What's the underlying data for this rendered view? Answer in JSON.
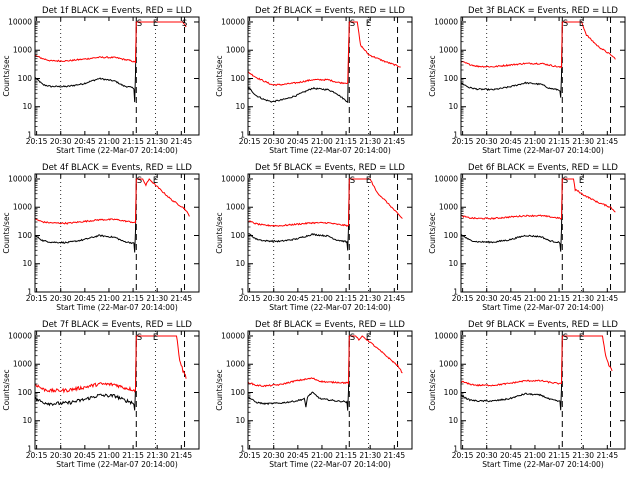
{
  "figure": {
    "xlabel": "Start Time (22-Mar-07 20:14:00)",
    "ylabel": "Counts/sec",
    "x_ticks": [
      "20:15",
      "20:30",
      "20:45",
      "21:00",
      "21:15",
      "21:30",
      "21:45"
    ],
    "y_ticks": [
      "1",
      "10",
      "100",
      "1000",
      "10000"
    ],
    "colors": {
      "events": "#000000",
      "lld": "#ff0000"
    }
  },
  "chart_data": [
    {
      "type": "line",
      "title": "Det 1f BLACK = Events, RED = LLD",
      "xlim": [
        0,
        102
      ],
      "ylim": [
        1,
        15000
      ],
      "yscale": "log",
      "xticks_minutes": [
        1,
        16,
        31,
        46,
        61,
        76,
        91
      ],
      "markers": [
        {
          "x": 16,
          "style": "dotted"
        },
        {
          "x": 63,
          "style": "dashed"
        },
        {
          "x": 75,
          "style": "dotted"
        },
        {
          "x": 93,
          "style": "dashed"
        }
      ],
      "annotations": [
        {
          "text": "S",
          "x": 65
        },
        {
          "text": "E",
          "x": 75
        },
        {
          "text": "S",
          "x": 93
        }
      ],
      "series": [
        {
          "name": "Events",
          "x": [
            0,
            5,
            10,
            20,
            30,
            40,
            50,
            55,
            60,
            61.5,
            62,
            62.5,
            63
          ],
          "y": [
            110,
            60,
            52,
            52,
            65,
            100,
            80,
            55,
            48,
            45,
            15,
            150,
            10000
          ]
        },
        {
          "name": "LLD",
          "x": [
            0,
            5,
            10,
            20,
            30,
            40,
            50,
            55,
            60,
            62,
            62.5,
            63,
            90,
            92,
            93,
            94
          ],
          "y": [
            650,
            500,
            420,
            420,
            480,
            560,
            550,
            480,
            420,
            380,
            380,
            10000,
            10000,
            10000,
            8000,
            6500
          ]
        }
      ]
    },
    {
      "type": "line",
      "title": "Det 2f BLACK = Events, RED = LLD",
      "xlim": [
        0,
        102
      ],
      "ylim": [
        1,
        15000
      ],
      "yscale": "log",
      "xticks_minutes": [
        1,
        16,
        31,
        46,
        61,
        76,
        91
      ],
      "markers": [
        {
          "x": 16,
          "style": "dotted"
        },
        {
          "x": 63,
          "style": "dashed"
        },
        {
          "x": 75,
          "style": "dotted"
        },
        {
          "x": 93,
          "style": "dashed"
        }
      ],
      "annotations": [
        {
          "text": "S",
          "x": 65
        },
        {
          "text": "E",
          "x": 75
        }
      ],
      "series": [
        {
          "name": "Events",
          "x": [
            0,
            5,
            10,
            15,
            20,
            25,
            30,
            40,
            50,
            55,
            58,
            60,
            62,
            63
          ],
          "y": [
            50,
            25,
            18,
            15,
            17,
            20,
            25,
            45,
            40,
            30,
            22,
            18,
            15,
            10000
          ]
        },
        {
          "name": "LLD",
          "x": [
            0,
            5,
            10,
            15,
            20,
            30,
            40,
            50,
            55,
            58,
            60,
            62,
            63,
            66,
            68,
            70,
            75,
            85,
            93,
            95
          ],
          "y": [
            170,
            110,
            80,
            60,
            60,
            70,
            90,
            90,
            75,
            70,
            70,
            70,
            10000,
            10000,
            10000,
            1500,
            700,
            400,
            280,
            260
          ]
        }
      ]
    },
    {
      "type": "line",
      "title": "Det 3f BLACK = Events, RED = LLD",
      "xlim": [
        0,
        102
      ],
      "ylim": [
        1,
        15000
      ],
      "yscale": "log",
      "xticks_minutes": [
        1,
        16,
        31,
        46,
        61,
        76,
        91
      ],
      "markers": [
        {
          "x": 16,
          "style": "dotted"
        },
        {
          "x": 63,
          "style": "dashed"
        },
        {
          "x": 75,
          "style": "dotted"
        },
        {
          "x": 93,
          "style": "dashed"
        }
      ],
      "annotations": [
        {
          "text": "S",
          "x": 65
        },
        {
          "text": "E",
          "x": 75
        }
      ],
      "series": [
        {
          "name": "Events",
          "x": [
            0,
            5,
            10,
            20,
            30,
            40,
            50,
            55,
            60,
            61.5,
            62,
            62.5,
            63
          ],
          "y": [
            70,
            48,
            42,
            40,
            50,
            70,
            62,
            45,
            40,
            38,
            20,
            120,
            10000
          ]
        },
        {
          "name": "LLD",
          "x": [
            0,
            5,
            10,
            20,
            30,
            40,
            50,
            55,
            60,
            62,
            62.5,
            63,
            75,
            78,
            85,
            93,
            96
          ],
          "y": [
            400,
            320,
            270,
            260,
            300,
            340,
            340,
            300,
            260,
            250,
            250,
            10000,
            10000,
            3500,
            1400,
            700,
            500
          ]
        }
      ]
    },
    {
      "type": "line",
      "title": "Det 4f BLACK = Events, RED = LLD",
      "xlim": [
        0,
        102
      ],
      "ylim": [
        1,
        15000
      ],
      "yscale": "log",
      "xticks_minutes": [
        1,
        16,
        31,
        46,
        61,
        76,
        91
      ],
      "markers": [
        {
          "x": 16,
          "style": "dotted"
        },
        {
          "x": 63,
          "style": "dashed"
        },
        {
          "x": 75,
          "style": "dotted"
        },
        {
          "x": 93,
          "style": "dashed"
        }
      ],
      "annotations": [
        {
          "text": "S",
          "x": 65
        },
        {
          "text": "E",
          "x": 75
        }
      ],
      "series": [
        {
          "name": "Events",
          "x": [
            0,
            5,
            10,
            20,
            30,
            40,
            50,
            55,
            60,
            61.5,
            62,
            62.5,
            63
          ],
          "y": [
            100,
            65,
            58,
            56,
            70,
            100,
            85,
            62,
            55,
            52,
            25,
            150,
            10000
          ]
        },
        {
          "name": "LLD",
          "x": [
            0,
            5,
            10,
            20,
            30,
            40,
            50,
            55,
            60,
            62,
            62.5,
            63,
            67,
            69,
            71,
            75,
            85,
            93,
            96
          ],
          "y": [
            380,
            300,
            280,
            270,
            310,
            360,
            370,
            330,
            300,
            280,
            280,
            10000,
            10000,
            6000,
            10000,
            6000,
            1800,
            900,
            500
          ]
        }
      ]
    },
    {
      "type": "line",
      "title": "Det 5f BLACK = Events, RED = LLD",
      "xlim": [
        0,
        102
      ],
      "ylim": [
        1,
        15000
      ],
      "yscale": "log",
      "xticks_minutes": [
        1,
        16,
        31,
        46,
        61,
        76,
        91
      ],
      "markers": [
        {
          "x": 16,
          "style": "dotted"
        },
        {
          "x": 63,
          "style": "dashed"
        },
        {
          "x": 75,
          "style": "dotted"
        },
        {
          "x": 93,
          "style": "dashed"
        }
      ],
      "annotations": [
        {
          "text": "S",
          "x": 65
        },
        {
          "text": "E",
          "x": 75
        }
      ],
      "series": [
        {
          "name": "Events",
          "x": [
            0,
            5,
            10,
            20,
            30,
            40,
            50,
            55,
            60,
            61.5,
            62,
            62.5,
            63
          ],
          "y": [
            120,
            75,
            65,
            62,
            75,
            110,
            95,
            70,
            62,
            58,
            30,
            180,
            10000
          ]
        },
        {
          "name": "LLD",
          "x": [
            0,
            5,
            10,
            20,
            30,
            40,
            50,
            55,
            60,
            62,
            62.5,
            63,
            76,
            80,
            88,
            93,
            96
          ],
          "y": [
            330,
            260,
            230,
            220,
            250,
            280,
            280,
            250,
            230,
            220,
            220,
            10000,
            10000,
            3500,
            1200,
            600,
            400
          ]
        }
      ]
    },
    {
      "type": "line",
      "title": "Det 6f BLACK = Events, RED = LLD",
      "xlim": [
        0,
        102
      ],
      "ylim": [
        1,
        15000
      ],
      "yscale": "log",
      "xticks_minutes": [
        1,
        16,
        31,
        46,
        61,
        76,
        91
      ],
      "markers": [
        {
          "x": 16,
          "style": "dotted"
        },
        {
          "x": 63,
          "style": "dashed"
        },
        {
          "x": 75,
          "style": "dotted"
        },
        {
          "x": 93,
          "style": "dashed"
        }
      ],
      "annotations": [
        {
          "text": "S",
          "x": 65
        },
        {
          "text": "E",
          "x": 75
        }
      ],
      "series": [
        {
          "name": "Events",
          "x": [
            0,
            5,
            10,
            20,
            30,
            40,
            50,
            55,
            60,
            61.5,
            62,
            62.5,
            63
          ],
          "y": [
            110,
            70,
            60,
            58,
            70,
            100,
            90,
            65,
            58,
            55,
            28,
            160,
            10000
          ]
        },
        {
          "name": "LLD",
          "x": [
            0,
            5,
            10,
            20,
            30,
            40,
            50,
            55,
            60,
            62,
            62.5,
            63,
            70,
            71,
            72,
            75,
            85,
            93,
            96
          ],
          "y": [
            500,
            420,
            400,
            400,
            450,
            500,
            500,
            460,
            420,
            400,
            400,
            10000,
            10000,
            4000,
            4000,
            3000,
            1500,
            1000,
            700
          ]
        }
      ]
    },
    {
      "type": "line",
      "title": "Det 7f BLACK = Events, RED = LLD",
      "xlim": [
        0,
        102
      ],
      "ylim": [
        1,
        15000
      ],
      "yscale": "log",
      "xticks_minutes": [
        1,
        16,
        31,
        46,
        61,
        76,
        91
      ],
      "markers": [
        {
          "x": 16,
          "style": "dotted"
        },
        {
          "x": 63,
          "style": "dashed"
        },
        {
          "x": 75,
          "style": "dotted"
        },
        {
          "x": 93,
          "style": "dashed"
        }
      ],
      "annotations": [
        {
          "text": "S",
          "x": 65
        },
        {
          "text": "E",
          "x": 75
        }
      ],
      "series": [
        {
          "name": "Events",
          "x": [
            0,
            5,
            10,
            20,
            30,
            40,
            50,
            55,
            60,
            61.5,
            62,
            62.5,
            63
          ],
          "y": [
            60,
            45,
            40,
            42,
            55,
            80,
            75,
            55,
            45,
            40,
            22,
            130,
            10000
          ]
        },
        {
          "name": "LLD",
          "x": [
            0,
            5,
            10,
            20,
            30,
            40,
            50,
            55,
            60,
            62,
            62.5,
            63,
            88,
            90,
            92,
            94
          ],
          "y": [
            200,
            130,
            115,
            120,
            150,
            200,
            190,
            150,
            130,
            120,
            120,
            10000,
            10000,
            1500,
            600,
            350
          ]
        }
      ]
    },
    {
      "type": "line",
      "title": "Det 8f BLACK = Events, RED = LLD",
      "xlim": [
        0,
        102
      ],
      "ylim": [
        1,
        15000
      ],
      "yscale": "log",
      "xticks_minutes": [
        1,
        16,
        31,
        46,
        61,
        76,
        91
      ],
      "markers": [
        {
          "x": 16,
          "style": "dotted"
        },
        {
          "x": 63,
          "style": "dashed"
        },
        {
          "x": 75,
          "style": "dotted"
        },
        {
          "x": 93,
          "style": "dashed"
        }
      ],
      "annotations": [
        {
          "text": "S",
          "x": 65
        },
        {
          "text": "E",
          "x": 75
        }
      ],
      "series": [
        {
          "name": "Events",
          "x": [
            0,
            5,
            10,
            20,
            30,
            35,
            36,
            37,
            40,
            45,
            50,
            55,
            60,
            61.5,
            62,
            62.5,
            63
          ],
          "y": [
            70,
            45,
            40,
            42,
            50,
            60,
            30,
            70,
            100,
            60,
            55,
            50,
            48,
            45,
            22,
            120,
            10000
          ]
        },
        {
          "name": "LLD",
          "x": [
            0,
            5,
            10,
            20,
            30,
            40,
            45,
            50,
            55,
            60,
            62,
            62.5,
            63,
            67,
            69,
            71,
            76,
            85,
            93,
            96
          ],
          "y": [
            230,
            180,
            170,
            190,
            260,
            320,
            250,
            230,
            230,
            220,
            220,
            220,
            10000,
            10000,
            7000,
            10000,
            6000,
            2200,
            900,
            500
          ]
        }
      ]
    },
    {
      "type": "line",
      "title": "Det 9f BLACK = Events, RED = LLD",
      "xlim": [
        0,
        102
      ],
      "ylim": [
        1,
        15000
      ],
      "yscale": "log",
      "xticks_minutes": [
        1,
        16,
        31,
        46,
        61,
        76,
        91
      ],
      "markers": [
        {
          "x": 16,
          "style": "dotted"
        },
        {
          "x": 63,
          "style": "dashed"
        },
        {
          "x": 75,
          "style": "dotted"
        },
        {
          "x": 93,
          "style": "dashed"
        }
      ],
      "annotations": [
        {
          "text": "S",
          "x": 65
        },
        {
          "text": "E",
          "x": 75
        }
      ],
      "series": [
        {
          "name": "Events",
          "x": [
            0,
            5,
            10,
            20,
            30,
            40,
            50,
            55,
            60,
            61.5,
            62,
            62.5,
            63
          ],
          "y": [
            80,
            55,
            50,
            50,
            60,
            90,
            80,
            58,
            50,
            48,
            24,
            140,
            10000
          ]
        },
        {
          "name": "LLD",
          "x": [
            0,
            5,
            10,
            20,
            30,
            40,
            50,
            55,
            60,
            62,
            62.5,
            63,
            88,
            90,
            92,
            94
          ],
          "y": [
            250,
            200,
            180,
            180,
            210,
            260,
            260,
            230,
            210,
            200,
            200,
            10000,
            10000,
            2000,
            900,
            600
          ]
        }
      ]
    }
  ]
}
